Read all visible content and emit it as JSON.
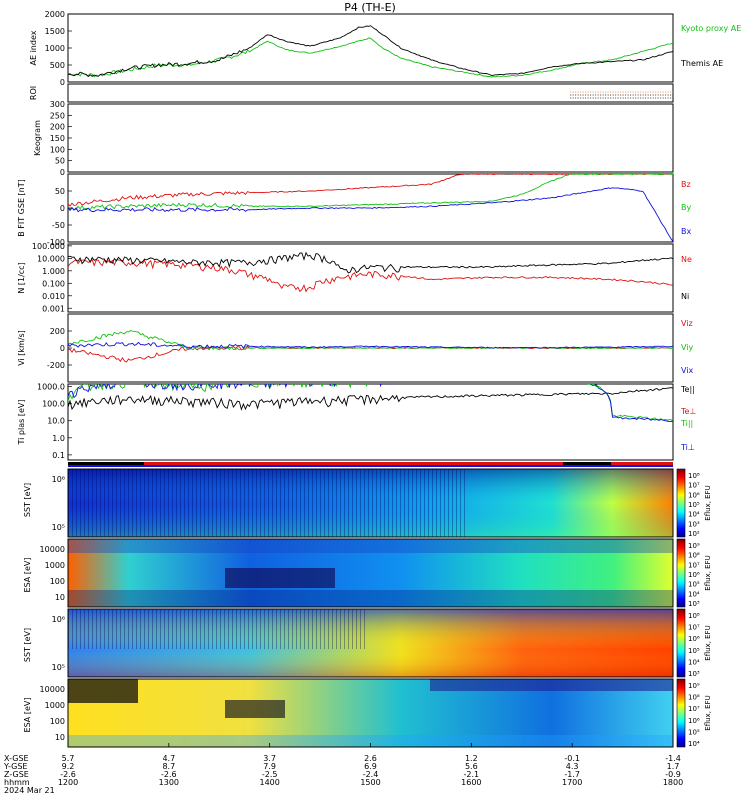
{
  "title": "P4 (TH-E)",
  "colors": {
    "black": "#000000",
    "red": "#e01010",
    "green": "#10d010",
    "blue": "#1010e0",
    "orange": "#ff6600",
    "lime": "#33dd33"
  },
  "time_axis": {
    "ticks": [
      "1200",
      "1300",
      "1400",
      "1500",
      "1600",
      "1700",
      "1800"
    ],
    "x_gse": [
      "5.7",
      "4.7",
      "3.7",
      "2.6",
      "1.2",
      "-0.1",
      "-1.4"
    ],
    "y_gse": [
      "9.2",
      "8.7",
      "7.9",
      "6.9",
      "5.6",
      "4.3",
      "1.7"
    ],
    "z_gse": [
      "-2.6",
      "-2.6",
      "-2.5",
      "-2.4",
      "-2.1",
      "-1.7",
      "-0.9"
    ],
    "row_labels": [
      "X-GSE",
      "Y-GSE",
      "Z-GSE",
      "hhmm"
    ],
    "date": "2024 Mar 21"
  },
  "chart_data": [
    {
      "type": "line",
      "panel": "ae",
      "ylabel": "AE index",
      "yticks": [
        "0",
        "500",
        "1000",
        "1500",
        "2000"
      ],
      "ylim": [
        0,
        2000
      ],
      "legend": [
        "Kyoto proxy AE",
        "Themis AE"
      ],
      "series": [
        {
          "name": "Kyoto proxy AE",
          "color": "green",
          "points": [
            [
              0,
              250
            ],
            [
              0.05,
              200
            ],
            [
              0.1,
              350
            ],
            [
              0.15,
              500
            ],
            [
              0.2,
              500
            ],
            [
              0.25,
              650
            ],
            [
              0.3,
              900
            ],
            [
              0.33,
              1200
            ],
            [
              0.36,
              950
            ],
            [
              0.4,
              850
            ],
            [
              0.45,
              1050
            ],
            [
              0.5,
              1300
            ],
            [
              0.52,
              1000
            ],
            [
              0.55,
              700
            ],
            [
              0.6,
              450
            ],
            [
              0.65,
              300
            ],
            [
              0.7,
              150
            ],
            [
              0.75,
              200
            ],
            [
              0.8,
              350
            ],
            [
              0.85,
              550
            ],
            [
              0.9,
              650
            ],
            [
              0.95,
              900
            ],
            [
              1,
              1150
            ]
          ]
        },
        {
          "name": "Themis AE",
          "color": "black",
          "points": [
            [
              0,
              250
            ],
            [
              0.05,
              200
            ],
            [
              0.1,
              400
            ],
            [
              0.15,
              500
            ],
            [
              0.2,
              550
            ],
            [
              0.25,
              650
            ],
            [
              0.3,
              1000
            ],
            [
              0.33,
              1400
            ],
            [
              0.36,
              1200
            ],
            [
              0.4,
              1050
            ],
            [
              0.45,
              1300
            ],
            [
              0.48,
              1600
            ],
            [
              0.5,
              1650
            ],
            [
              0.52,
              1400
            ],
            [
              0.55,
              1000
            ],
            [
              0.6,
              650
            ],
            [
              0.65,
              400
            ],
            [
              0.7,
              200
            ],
            [
              0.75,
              250
            ],
            [
              0.8,
              450
            ],
            [
              0.85,
              550
            ],
            [
              0.9,
              600
            ],
            [
              0.95,
              650
            ],
            [
              1,
              900
            ]
          ]
        }
      ]
    },
    {
      "type": "line",
      "panel": "roi",
      "ylabel": "ROI",
      "series": [
        {
          "color": "orange",
          "x_start": 0.83,
          "x_end": 1.0
        }
      ]
    },
    {
      "type": "line",
      "panel": "keogram",
      "ylabel": "Keogram",
      "yticks": [
        "0",
        "50",
        "100",
        "150",
        "200",
        "250",
        "300"
      ],
      "ylim": [
        0,
        300
      ]
    },
    {
      "type": "line",
      "panel": "bfield",
      "ylabel": "B FIT GSE [nT]",
      "yticks": [
        "-100",
        "-50",
        "0",
        "50"
      ],
      "ylim": [
        -100,
        100
      ],
      "legend": [
        "Bz",
        "By",
        "Bx"
      ],
      "series": [
        {
          "name": "Bz",
          "color": "red",
          "points": [
            [
              0,
              10
            ],
            [
              0.1,
              30
            ],
            [
              0.2,
              40
            ],
            [
              0.3,
              45
            ],
            [
              0.4,
              50
            ],
            [
              0.5,
              60
            ],
            [
              0.6,
              70
            ],
            [
              0.65,
              100
            ]
          ]
        },
        {
          "name": "By",
          "color": "green",
          "points": [
            [
              0,
              0
            ],
            [
              0.1,
              5
            ],
            [
              0.2,
              10
            ],
            [
              0.3,
              5
            ],
            [
              0.4,
              5
            ],
            [
              0.5,
              10
            ],
            [
              0.6,
              15
            ],
            [
              0.7,
              20
            ],
            [
              0.75,
              40
            ],
            [
              0.8,
              80
            ],
            [
              0.83,
              100
            ]
          ]
        },
        {
          "name": "Bx",
          "color": "blue",
          "points": [
            [
              0,
              -5
            ],
            [
              0.1,
              -5
            ],
            [
              0.2,
              -5
            ],
            [
              0.3,
              -5
            ],
            [
              0.4,
              0
            ],
            [
              0.5,
              0
            ],
            [
              0.6,
              5
            ],
            [
              0.7,
              15
            ],
            [
              0.8,
              30
            ],
            [
              0.9,
              60
            ],
            [
              0.95,
              50
            ],
            [
              1,
              -100
            ]
          ]
        }
      ]
    },
    {
      "type": "line",
      "panel": "density",
      "ylabel": "N [1/cc]",
      "yticks": [
        "0.001",
        "0.010",
        "0.100",
        "1.000",
        "10.000",
        "100.000"
      ],
      "ylog": true,
      "legend": [
        "Ne",
        "Ni"
      ],
      "series": [
        {
          "name": "Ne",
          "color": "red",
          "points": [
            [
              0,
              5
            ],
            [
              0.1,
              5
            ],
            [
              0.2,
              3
            ],
            [
              0.3,
              0.5
            ],
            [
              0.35,
              0.05
            ],
            [
              0.4,
              0.05
            ],
            [
              0.45,
              0.3
            ],
            [
              0.5,
              0.6
            ],
            [
              0.6,
              0.2
            ],
            [
              0.7,
              0.3
            ],
            [
              0.8,
              0.3
            ],
            [
              0.9,
              0.2
            ],
            [
              1,
              0.07
            ]
          ]
        },
        {
          "name": "Ni",
          "color": "black",
          "points": [
            [
              0,
              10
            ],
            [
              0.1,
              8
            ],
            [
              0.2,
              5
            ],
            [
              0.3,
              5
            ],
            [
              0.35,
              10
            ],
            [
              0.4,
              20
            ],
            [
              0.45,
              1
            ],
            [
              0.5,
              2
            ],
            [
              0.6,
              2
            ],
            [
              0.7,
              2
            ],
            [
              0.8,
              3
            ],
            [
              0.9,
              4
            ],
            [
              1,
              10
            ]
          ]
        }
      ]
    },
    {
      "type": "line",
      "panel": "velocity",
      "ylabel": "Vi [km/s]",
      "yticks": [
        "-200",
        "0",
        "200"
      ],
      "ylim": [
        -400,
        400
      ],
      "legend": [
        "Viz",
        "Viy",
        "Vix"
      ],
      "series": [
        {
          "name": "Viz",
          "color": "red",
          "points": [
            [
              0,
              -20
            ],
            [
              0.1,
              -150
            ],
            [
              0.2,
              0
            ],
            [
              0.3,
              0
            ],
            [
              0.4,
              0
            ],
            [
              0.5,
              0
            ],
            [
              0.6,
              0
            ],
            [
              0.7,
              0
            ],
            [
              0.8,
              0
            ],
            [
              0.9,
              0
            ],
            [
              1,
              0
            ]
          ]
        },
        {
          "name": "Viy",
          "color": "green",
          "points": [
            [
              0,
              50
            ],
            [
              0.1,
              200
            ],
            [
              0.2,
              0
            ],
            [
              0.3,
              0
            ],
            [
              0.4,
              0
            ],
            [
              0.5,
              0
            ],
            [
              0.6,
              0
            ],
            [
              0.7,
              0
            ],
            [
              0.8,
              0
            ],
            [
              0.9,
              0
            ],
            [
              1,
              0
            ]
          ]
        },
        {
          "name": "Vix",
          "color": "blue",
          "points": [
            [
              0,
              30
            ],
            [
              0.1,
              50
            ],
            [
              0.2,
              20
            ],
            [
              0.3,
              20
            ],
            [
              0.4,
              10
            ],
            [
              0.5,
              20
            ],
            [
              0.6,
              10
            ],
            [
              0.7,
              5
            ],
            [
              0.8,
              5
            ],
            [
              0.9,
              10
            ],
            [
              1,
              20
            ]
          ]
        }
      ]
    },
    {
      "type": "line",
      "panel": "temperature",
      "ylabel": "Ti plas [eV]",
      "yticks": [
        "0.1",
        "1.0",
        "10.0",
        "100.0",
        "1000.0"
      ],
      "ylog": true,
      "legend": [
        "Te||",
        "Te⊥",
        "Ti||",
        "Ti⊥"
      ],
      "series": [
        {
          "name": "Te||",
          "color": "black",
          "points": [
            [
              0,
              100
            ],
            [
              0.1,
              200
            ],
            [
              0.2,
              150
            ],
            [
              0.3,
              100
            ],
            [
              0.4,
              150
            ],
            [
              0.5,
              200
            ],
            [
              0.6,
              250
            ],
            [
              0.7,
              300
            ],
            [
              0.8,
              350
            ],
            [
              0.9,
              400
            ],
            [
              1,
              800
            ]
          ]
        },
        {
          "name": "Ti||",
          "color": "green",
          "points": [
            [
              0,
              300
            ],
            [
              0.05,
              1500
            ],
            [
              0.1,
              2000
            ],
            [
              0.2,
              1000
            ],
            [
              0.3,
              1800
            ],
            [
              0.4,
              2000
            ],
            [
              0.5,
              2500
            ],
            [
              0.6,
              2500
            ],
            [
              0.7,
              2500
            ],
            [
              0.8,
              2500
            ],
            [
              0.85,
              2000
            ],
            [
              0.9,
              20
            ],
            [
              1,
              10
            ]
          ]
        },
        {
          "name": "Ti⊥",
          "color": "blue",
          "points": [
            [
              0,
              400
            ],
            [
              0.1,
              2000
            ],
            [
              0.2,
              1500
            ],
            [
              0.3,
              2000
            ],
            [
              0.4,
              2200
            ],
            [
              0.5,
              2500
            ],
            [
              0.6,
              2500
            ],
            [
              0.7,
              2500
            ],
            [
              0.8,
              2500
            ],
            [
              0.85,
              2000
            ],
            [
              0.9,
              15
            ],
            [
              1,
              10
            ]
          ]
        }
      ]
    },
    {
      "type": "heatmap",
      "panel": "sst_e",
      "ylabel": "SST [eV]",
      "yticks": [
        "10⁶",
        "10⁵"
      ],
      "colorbar": {
        "label": "Eflux, EFU",
        "ticks": [
          "10⁸",
          "10⁷",
          "10⁶",
          "10⁵",
          "10⁴",
          "10³",
          "10²"
        ]
      }
    },
    {
      "type": "heatmap",
      "panel": "esa_e",
      "ylabel": "ESA [eV]",
      "yticks": [
        "10000",
        "1000",
        "100",
        "10"
      ],
      "colorbar": {
        "label": "Eflux, EFU",
        "ticks": [
          "10⁹",
          "10⁸",
          "10⁷",
          "10⁶",
          "10⁵",
          "10⁴",
          "10³"
        ]
      }
    },
    {
      "type": "heatmap",
      "panel": "sst_i",
      "ylabel": "SST [eV]",
      "yticks": [
        "10⁶",
        "10⁵"
      ],
      "colorbar": {
        "label": "Eflux, EFU",
        "ticks": [
          "10⁸",
          "10⁷",
          "10⁶",
          "10⁵",
          "10⁴",
          "10³"
        ]
      }
    },
    {
      "type": "heatmap",
      "panel": "esa_i",
      "ylabel": "ESA [eV]",
      "yticks": [
        "10000",
        "1000",
        "100",
        "10"
      ],
      "colorbar": {
        "label": "Eflux, EFU",
        "ticks": [
          "10⁹",
          "10⁸",
          "10⁷",
          "10⁶",
          "10⁵",
          "10⁴"
        ]
      }
    }
  ]
}
